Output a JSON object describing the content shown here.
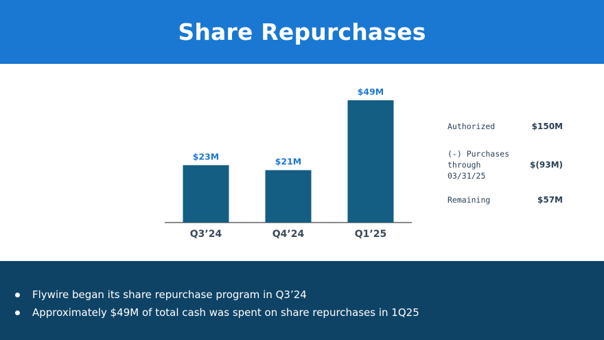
{
  "header": {
    "title": "Share Repurchases"
  },
  "colors": {
    "header_bg": "#1a78d2",
    "bar": "#135e82",
    "bar_label": "#1a78d2",
    "footer_bg": "#0f4366",
    "axis": "#444444"
  },
  "chart_data": {
    "type": "bar",
    "categories": [
      "Q3’24",
      "Q4’24",
      "Q1’25"
    ],
    "values": [
      23,
      21,
      49
    ],
    "value_labels": [
      "$23M",
      "$21M",
      "$49M"
    ],
    "title": "",
    "xlabel": "",
    "ylabel": "",
    "ylim": [
      0,
      49
    ],
    "grid": false,
    "legend": "none"
  },
  "summary": {
    "rows": [
      {
        "label": "Authorized",
        "value": "$150M"
      },
      {
        "label": "(-) Purchases through 03/31/25",
        "value": "$(93M)"
      },
      {
        "label": "Remaining",
        "value": "$57M"
      }
    ]
  },
  "footer": {
    "bullets": [
      "Flywire began its share repurchase program in Q3’24",
      "Approximately $49M of total cash was spent on share repurchases in 1Q25"
    ]
  }
}
